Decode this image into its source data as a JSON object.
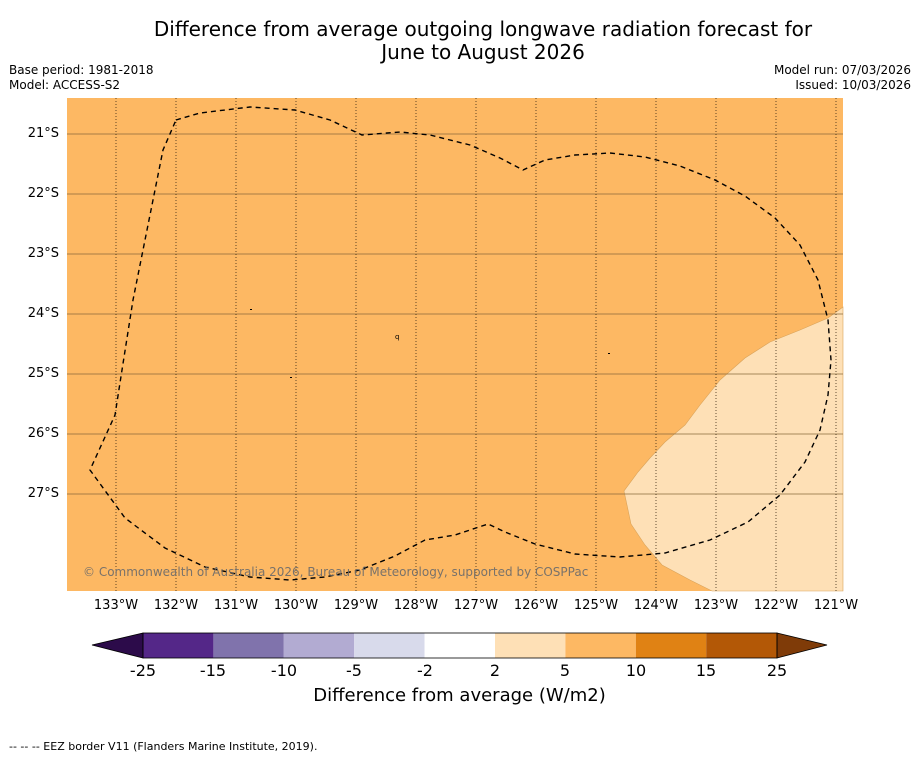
{
  "title": {
    "line1": "Difference from average outgoing longwave radiation forecast for",
    "line2": "June to August 2026"
  },
  "meta": {
    "base_period": "Base period: 1981-2018",
    "model": "Model: ACCESS-S2",
    "model_run": "Model run: 07/03/2026",
    "issued": "Issued: 10/03/2026"
  },
  "map": {
    "latitude_labels": [
      "21°S",
      "22°S",
      "23°S",
      "24°S",
      "25°S",
      "26°S",
      "27°S"
    ],
    "longitude_labels": [
      "133°W",
      "132°W",
      "131°W",
      "130°W",
      "129°W",
      "128°W",
      "127°W",
      "126°W",
      "125°W",
      "124°W",
      "123°W",
      "122°W",
      "121°W"
    ],
    "credit": "© Commonwealth of Australia 2026, Bureau of Meteorology, supported by COSPPac",
    "island_label": "q"
  },
  "colorbar": {
    "ticks": [
      "-25",
      "-15",
      "-10",
      "-5",
      "-2",
      "2",
      "5",
      "10",
      "15",
      "25"
    ],
    "label": "Difference from average (W/m2)",
    "colors": [
      "#2c0b4a",
      "#542788",
      "#8073ac",
      "#b2abd2",
      "#d8daeb",
      "#ffffff",
      "#fee0b6",
      "#fdb863",
      "#e08214",
      "#b35806",
      "#7f3b08"
    ]
  },
  "footer": {
    "legend_text": "--  --  -- EEZ border V11 (Flanders Marine Institute, 2019)."
  }
}
